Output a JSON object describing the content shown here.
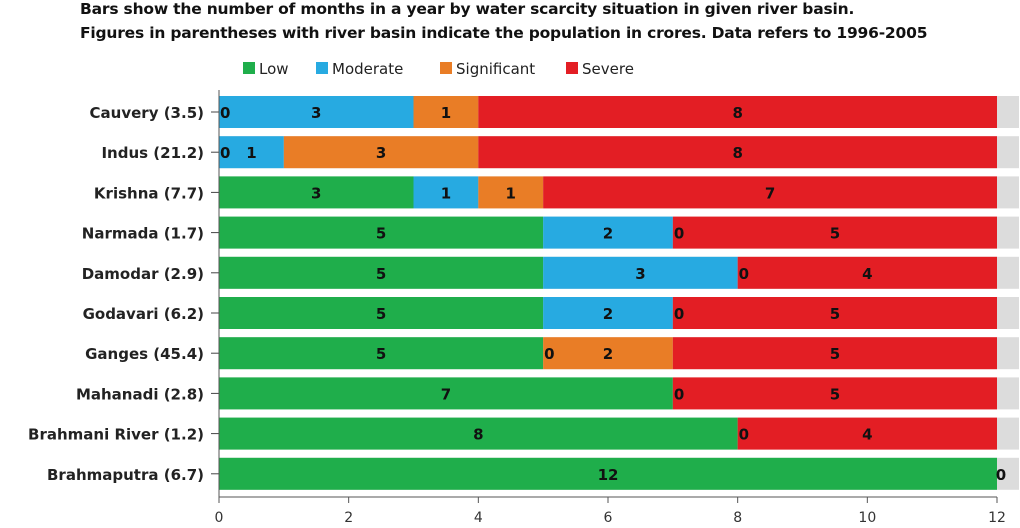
{
  "titles": {
    "line1": "Bars show the number of months in a year by water scarcity situation in given river basin.",
    "line2": "Figures in parentheses with river basin indicate the population in crores. Data refers to 1996-2005"
  },
  "chart_data": {
    "type": "bar",
    "orientation": "horizontal",
    "stacked": true,
    "categories": [
      "Cauvery (3.5)",
      "Indus (21.2)",
      "Krishna (7.7)",
      "Narmada (1.7)",
      "Damodar (2.9)",
      "Godavari (6.2)",
      "Ganges (45.4)",
      "Mahanadi (2.8)",
      "Brahmani River (1.2)",
      "Brahmaputra (6.7)"
    ],
    "series": [
      {
        "name": "Low",
        "color": "#1fae4b",
        "values": [
          0,
          0,
          3,
          5,
          5,
          5,
          5,
          7,
          8,
          12
        ]
      },
      {
        "name": "Moderate",
        "color": "#27aae1",
        "values": [
          3,
          1,
          1,
          2,
          3,
          2,
          0,
          0,
          0,
          0
        ]
      },
      {
        "name": "Significant",
        "color": "#e97d26",
        "values": [
          1,
          3,
          1,
          0,
          0,
          0,
          2,
          0,
          0,
          0
        ]
      },
      {
        "name": "Severe",
        "color": "#e31e24",
        "values": [
          8,
          8,
          7,
          5,
          4,
          5,
          5,
          5,
          4,
          0
        ]
      }
    ],
    "data_labels": [
      [
        "0",
        "3",
        "1",
        "8"
      ],
      [
        "0",
        "1",
        "3",
        "8"
      ],
      [
        "3",
        "1",
        "1",
        "7"
      ],
      [
        "5",
        "2",
        "0",
        "5"
      ],
      [
        "5",
        "3",
        "0",
        "4"
      ],
      [
        "5",
        "2",
        "0",
        "5"
      ],
      [
        "5",
        "0",
        "2",
        "5"
      ],
      [
        "7",
        "0",
        "5"
      ],
      [
        "8",
        "0",
        "4"
      ],
      [
        "12",
        "0"
      ]
    ],
    "xlim": [
      0,
      12
    ],
    "xticks": [
      0,
      2,
      4,
      6,
      8,
      10,
      12
    ],
    "legend_position": "top",
    "grid": false
  }
}
